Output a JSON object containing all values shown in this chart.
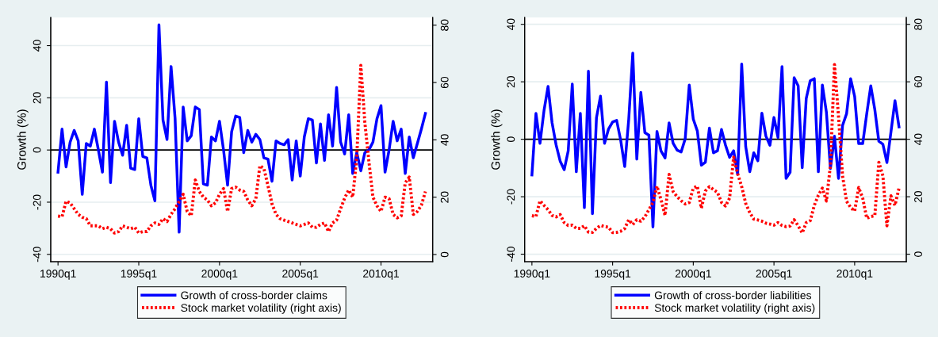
{
  "chart_data": [
    {
      "type": "line",
      "ylabel": "Growth (%)",
      "categories": [
        "1990q1",
        null,
        null,
        null,
        null,
        null,
        null,
        null,
        null,
        null,
        null,
        null,
        null,
        null,
        null,
        null,
        null,
        null,
        null,
        null,
        "1995q1",
        null,
        null,
        null,
        null,
        null,
        null,
        null,
        null,
        null,
        null,
        null,
        null,
        null,
        null,
        null,
        null,
        null,
        null,
        null,
        "2000q1",
        null,
        null,
        null,
        null,
        null,
        null,
        null,
        null,
        null,
        null,
        null,
        null,
        null,
        null,
        null,
        null,
        null,
        null,
        null,
        "2005q1",
        null,
        null,
        null,
        null,
        null,
        null,
        null,
        null,
        null,
        null,
        null,
        null,
        null,
        null,
        null,
        null,
        null,
        null,
        null,
        "2010q1",
        null,
        null,
        null,
        null,
        null,
        null,
        null,
        null,
        null,
        null,
        null
      ],
      "series": [
        {
          "name": "Growth of cross-border claims",
          "color": "#0000ff",
          "line_style": "solid",
          "values": [
            -8.5,
            8,
            -6.5,
            3,
            7.5,
            3.5,
            -17,
            2.5,
            1.5,
            8,
            0,
            -8.5,
            26,
            -12.5,
            11,
            3,
            -2,
            9.5,
            -7,
            -7.5,
            12,
            -2.5,
            -3,
            -13.5,
            -19.5,
            48,
            11.5,
            4,
            32,
            12,
            -31.5,
            16.5,
            3.5,
            5.5,
            16.5,
            15.5,
            -13,
            -13.5,
            5,
            3.5,
            11,
            0,
            -13.5,
            7,
            13,
            12.5,
            -1,
            7.5,
            3,
            6,
            4,
            -3,
            -3.5,
            -12,
            3.5,
            2.5,
            2,
            4,
            -11.5,
            3.5,
            -10,
            5,
            12,
            11.5,
            -5,
            10,
            -4,
            13.5,
            1.5,
            24,
            3,
            -1.5,
            13.5,
            -9,
            -1,
            -8,
            -1,
            0,
            3,
            12,
            17,
            -8.5,
            0,
            11,
            3.5,
            8,
            -9,
            5,
            -3,
            2.5,
            8,
            14
          ]
        },
        {
          "name": "Stock market volatility (right axis)",
          "color": "#ff0000",
          "axis": "y2",
          "line_style": "dotted",
          "values": [
            13.4,
            13.2,
            18.6,
            18,
            16,
            14,
            13,
            12.5,
            10,
            10,
            10,
            9,
            9.5,
            9,
            7.5,
            8,
            10,
            9.5,
            9,
            9.5,
            7.5,
            8,
            8,
            10,
            11,
            10.5,
            12.5,
            11.5,
            14,
            16,
            18.5,
            21,
            15,
            13.5,
            26,
            22,
            20,
            19,
            17,
            18,
            21,
            23,
            15,
            23,
            23.5,
            22.5,
            22,
            19,
            17,
            19.5,
            31,
            30,
            24,
            17.7,
            14,
            12.5,
            12,
            11.5,
            11,
            10.5,
            10,
            10.5,
            11,
            9.5,
            9.5,
            10.5,
            11,
            8,
            11,
            12,
            16,
            19.7,
            22.5,
            20,
            34,
            66,
            46,
            32.5,
            20,
            17,
            15,
            20,
            19.5,
            14,
            12.8,
            13.5,
            25,
            27,
            14,
            15,
            17.2,
            22
          ]
        }
      ],
      "ylim": [
        -42.8,
        50.8
      ],
      "yticks": [
        -40,
        -20,
        0,
        20,
        40
      ],
      "y2lim": [
        -2.5,
        82.7
      ],
      "y2ticks": [
        0,
        20,
        40,
        60,
        80
      ],
      "ref_lines": [
        {
          "axis": "y",
          "value": 0,
          "color": "#000000"
        }
      ],
      "grid": "y",
      "legend": "bottom"
    },
    {
      "type": "line",
      "ylabel": "Growth (%)",
      "categories": [
        "1990q1",
        null,
        null,
        null,
        null,
        null,
        null,
        null,
        null,
        null,
        null,
        null,
        null,
        null,
        null,
        null,
        null,
        null,
        null,
        null,
        "1995q1",
        null,
        null,
        null,
        null,
        null,
        null,
        null,
        null,
        null,
        null,
        null,
        null,
        null,
        null,
        null,
        null,
        null,
        null,
        null,
        "2000q1",
        null,
        null,
        null,
        null,
        null,
        null,
        null,
        null,
        null,
        null,
        null,
        null,
        null,
        null,
        null,
        null,
        null,
        null,
        null,
        "2005q1",
        null,
        null,
        null,
        null,
        null,
        null,
        null,
        null,
        null,
        null,
        null,
        null,
        null,
        null,
        null,
        null,
        null,
        null,
        null,
        "2010q1",
        null,
        null,
        null,
        null,
        null,
        null,
        null,
        null,
        null,
        null,
        null
      ],
      "series": [
        {
          "name": "Growth of cross-border liabilities",
          "color": "#0000ff",
          "line_style": "solid",
          "values": [
            -12.4,
            9,
            -1.4,
            10,
            18.4,
            5.7,
            -2,
            -7.6,
            -10.6,
            -4,
            19.2,
            -11.3,
            9,
            -23.8,
            23.7,
            -25.9,
            7.5,
            15,
            -1.4,
            3.6,
            6,
            6.6,
            -0.3,
            -9.5,
            7,
            30,
            -6.9,
            16.3,
            2.3,
            1.4,
            -30.5,
            2.7,
            -4.1,
            -6.5,
            5.7,
            -1.4,
            -3.8,
            -4.4,
            0.2,
            18.9,
            7,
            2.9,
            -9,
            -8,
            3.9,
            -4.7,
            -4,
            3.4,
            -2.1,
            -6.3,
            -4,
            -12.2,
            26.2,
            -2.6,
            -11.3,
            -4.7,
            -7.5,
            9.1,
            1.1,
            -2.1,
            7.6,
            0.6,
            25.3,
            -13.6,
            -11.5,
            21.4,
            18.6,
            -9.9,
            14.2,
            20.4,
            21.1,
            -11.3,
            18.9,
            9.4,
            -10.2,
            1.1,
            -13.6,
            4.8,
            8.9,
            21.1,
            14.9,
            -1.5,
            -1.5,
            8.9,
            18.6,
            10.3,
            -0.7,
            -1.7,
            -8.1,
            2.5,
            13.4,
            4.3
          ]
        },
        {
          "name": "Stock market volatility (right axis)",
          "color": "#ff0000",
          "axis": "y2",
          "line_style": "dotted",
          "values": [
            13.4,
            13.1,
            18.6,
            17,
            15.5,
            13.5,
            13,
            13.8,
            11,
            10,
            10.1,
            9,
            9,
            9.9,
            7.7,
            7.6,
            9,
            10,
            9.6,
            9.4,
            7.5,
            7.6,
            8,
            8.9,
            12,
            10.3,
            12,
            11.5,
            13,
            15.5,
            18,
            23.7,
            19,
            13.5,
            27.8,
            21.8,
            20,
            18.6,
            17.5,
            18,
            23,
            23.7,
            16,
            22,
            23.5,
            22.5,
            21.5,
            18,
            16.8,
            19.5,
            33.8,
            28,
            23.5,
            17.7,
            14.5,
            12.2,
            11.9,
            11.5,
            10.8,
            10.5,
            10.1,
            11,
            10,
            9.6,
            9.8,
            12,
            9.9,
            7.4,
            11,
            11.7,
            17,
            20.5,
            23,
            18.5,
            31,
            66,
            48,
            27.3,
            18.4,
            16.3,
            15,
            23.2,
            19.5,
            12.5,
            13.1,
            13.4,
            32,
            27.3,
            9.9,
            20.3,
            17,
            23
          ]
        }
      ],
      "ylim": [
        -42.6,
        42.4
      ],
      "yticks": [
        -40,
        -20,
        0,
        20,
        40
      ],
      "y2lim": [
        -2.6,
        82.4
      ],
      "y2ticks": [
        0,
        20,
        40,
        60,
        80
      ],
      "ref_lines": [
        {
          "axis": "y",
          "value": 0,
          "color": "#000000"
        }
      ],
      "grid": "y",
      "legend": "bottom"
    }
  ]
}
